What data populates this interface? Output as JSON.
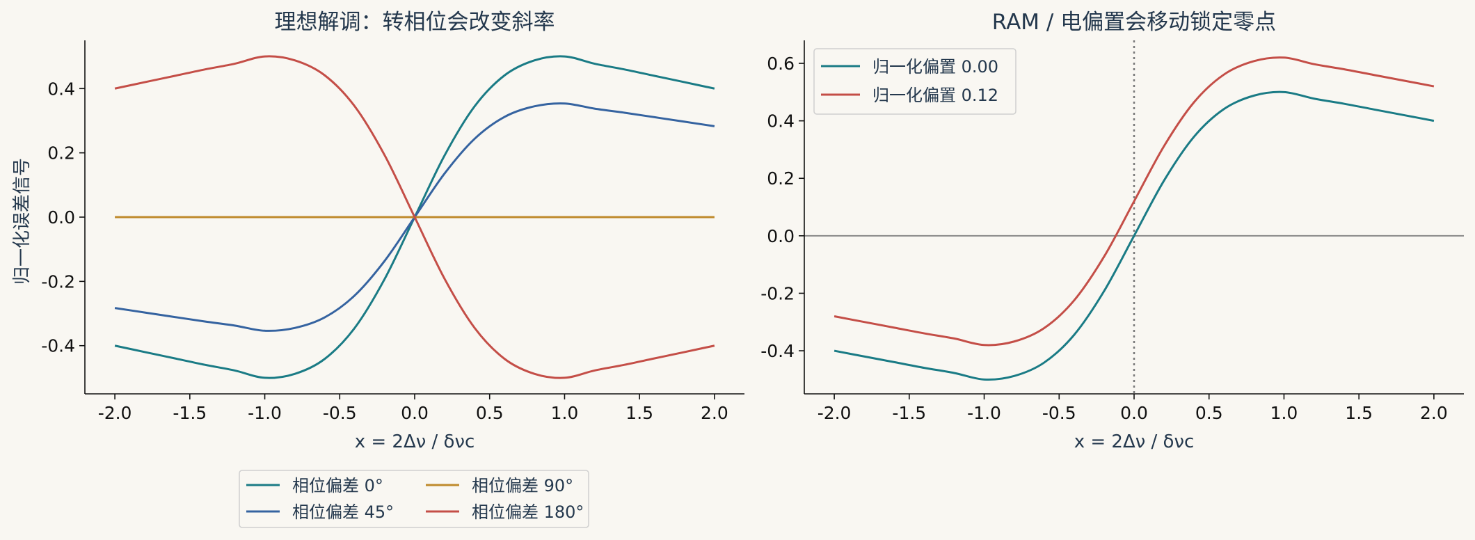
{
  "chart_data": [
    {
      "type": "line",
      "title": "理想解调：转相位会改变斜率",
      "xlabel": "x = 2Δν / δνc",
      "ylabel": "归一化误差信号",
      "xlim": [
        -2.2,
        2.2
      ],
      "ylim": [
        -0.55,
        0.55
      ],
      "xticks": [
        "-2.0",
        "-1.5",
        "-1.0",
        "-0.5",
        "0.0",
        "0.5",
        "1.0",
        "1.5",
        "2.0"
      ],
      "yticks": [
        "-0.4",
        "-0.2",
        "0.0",
        "0.2",
        "0.4"
      ],
      "legend_position": "below",
      "x": [
        -2.0,
        -1.8,
        -1.6,
        -1.4,
        -1.2,
        -1.0,
        -0.8,
        -0.6,
        -0.4,
        -0.2,
        0.0,
        0.2,
        0.4,
        0.6,
        0.8,
        1.0,
        1.2,
        1.4,
        1.6,
        1.8,
        2.0
      ],
      "series": [
        {
          "name": "相位偏差 0°",
          "color": "#1a7b85",
          "values": [
            -0.4,
            -0.4199,
            -0.4396,
            -0.4595,
            -0.4773,
            -0.5,
            -0.4878,
            -0.4412,
            -0.3448,
            -0.1923,
            0.0,
            0.1923,
            0.3448,
            0.4412,
            0.4878,
            0.5,
            0.4773,
            0.4595,
            0.4396,
            0.4199,
            0.4
          ]
        },
        {
          "name": "相位偏差 45°",
          "color": "#3563a0",
          "values": [
            -0.2828,
            -0.2969,
            -0.3109,
            -0.3249,
            -0.3375,
            -0.3536,
            -0.3449,
            -0.312,
            -0.2438,
            -0.136,
            0.0,
            0.136,
            0.2438,
            0.312,
            0.3449,
            0.3536,
            0.3375,
            0.3249,
            0.3109,
            0.2969,
            0.2828
          ]
        },
        {
          "name": "相位偏差 90°",
          "color": "#bf8a2c",
          "values": [
            0,
            0,
            0,
            0,
            0,
            0,
            0,
            0,
            0,
            0,
            0,
            0,
            0,
            0,
            0,
            0,
            0,
            0,
            0,
            0,
            0
          ]
        },
        {
          "name": "相位偏差 180°",
          "color": "#c44e47",
          "values": [
            0.4,
            0.4199,
            0.4396,
            0.4595,
            0.4773,
            0.5,
            0.4878,
            0.4412,
            0.3448,
            0.1923,
            0.0,
            -0.1923,
            -0.3448,
            -0.4412,
            -0.4878,
            -0.5,
            -0.4773,
            -0.4595,
            -0.4396,
            -0.4199,
            -0.4
          ]
        }
      ]
    },
    {
      "type": "line",
      "title": "RAM / 电偏置会移动锁定零点",
      "xlabel": "x = 2Δν / δνc",
      "xlim": [
        -2.2,
        2.2
      ],
      "ylim": [
        -0.55,
        0.68
      ],
      "xticks": [
        "-2.0",
        "-1.5",
        "-1.0",
        "-0.5",
        "0.0",
        "0.5",
        "1.0",
        "1.5",
        "2.0"
      ],
      "yticks": [
        "-0.4",
        "-0.2",
        "0.0",
        "0.2",
        "0.4",
        "0.6"
      ],
      "legend_position": "upper left",
      "x": [
        -2.0,
        -1.8,
        -1.6,
        -1.4,
        -1.2,
        -1.0,
        -0.8,
        -0.6,
        -0.4,
        -0.2,
        0.0,
        0.2,
        0.4,
        0.6,
        0.8,
        1.0,
        1.2,
        1.4,
        1.6,
        1.8,
        2.0
      ],
      "series": [
        {
          "name": "归一化偏置 0.00",
          "color": "#1a7b85",
          "values": [
            -0.4,
            -0.4199,
            -0.4396,
            -0.4595,
            -0.4773,
            -0.5,
            -0.4878,
            -0.4412,
            -0.3448,
            -0.1923,
            0.0,
            0.1923,
            0.3448,
            0.4412,
            0.4878,
            0.5,
            0.4773,
            0.4595,
            0.4396,
            0.4199,
            0.4
          ]
        },
        {
          "name": "归一化偏置 0.12",
          "color": "#c44e47",
          "values": [
            -0.28,
            -0.2999,
            -0.3196,
            -0.3395,
            -0.3573,
            -0.38,
            -0.3678,
            -0.3212,
            -0.2248,
            -0.0723,
            0.12,
            0.3123,
            0.4648,
            0.5612,
            0.6078,
            0.62,
            0.5973,
            0.5795,
            0.5596,
            0.5399,
            0.52
          ]
        }
      ],
      "reference_lines": {
        "horizontal_y": 0.0,
        "vertical_x": 0.0
      }
    }
  ]
}
